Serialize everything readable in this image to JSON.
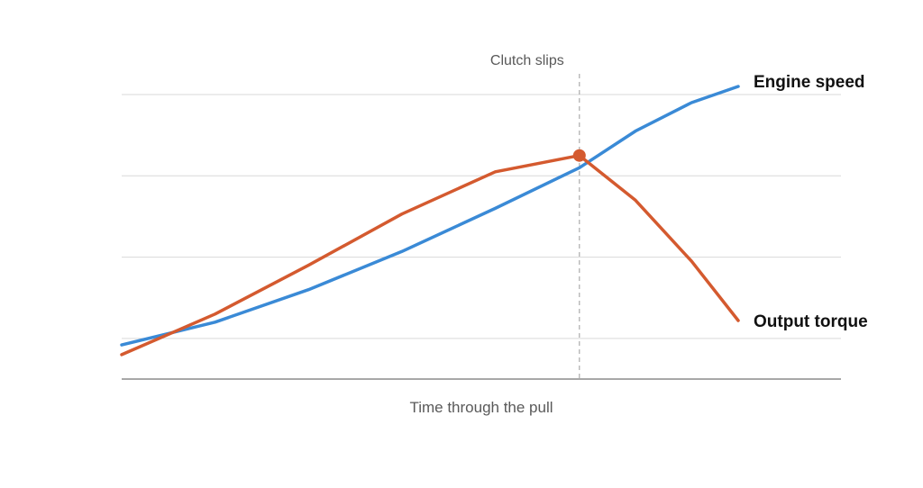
{
  "chart_data": {
    "type": "line",
    "title": "",
    "xlabel": "Time through the pull",
    "ylabel": "",
    "grid": true,
    "x": [
      0,
      1,
      2,
      3,
      4,
      4.9,
      5.5,
      6.1,
      6.6
    ],
    "xlim": [
      0,
      7.7
    ],
    "ylim": [
      0,
      3.5
    ],
    "series": [
      {
        "name": "Engine speed",
        "color": "#3a8ad6",
        "x": [
          0,
          1,
          2,
          3,
          4,
          4.9,
          5.5,
          6.1,
          6.6
        ],
        "values": [
          0.42,
          0.7,
          1.1,
          1.57,
          2.1,
          2.6,
          3.05,
          3.4,
          3.6
        ]
      },
      {
        "name": "Output torque",
        "color": "#d45a2f",
        "x": [
          0,
          1,
          2,
          3,
          4,
          4.9,
          5.5,
          6.1,
          6.6
        ],
        "values": [
          0.3,
          0.8,
          1.4,
          2.03,
          2.55,
          2.75,
          2.2,
          1.45,
          0.72
        ]
      }
    ],
    "annotations": [
      {
        "type": "vertical-line",
        "x": 4.9,
        "text": "Clutch slips",
        "style": "dashed"
      },
      {
        "type": "marker",
        "series": "Output torque",
        "x": 4.9,
        "y": 2.75
      }
    ],
    "gridlines_y": [
      0.5,
      1.5,
      2.5,
      3.5
    ]
  }
}
